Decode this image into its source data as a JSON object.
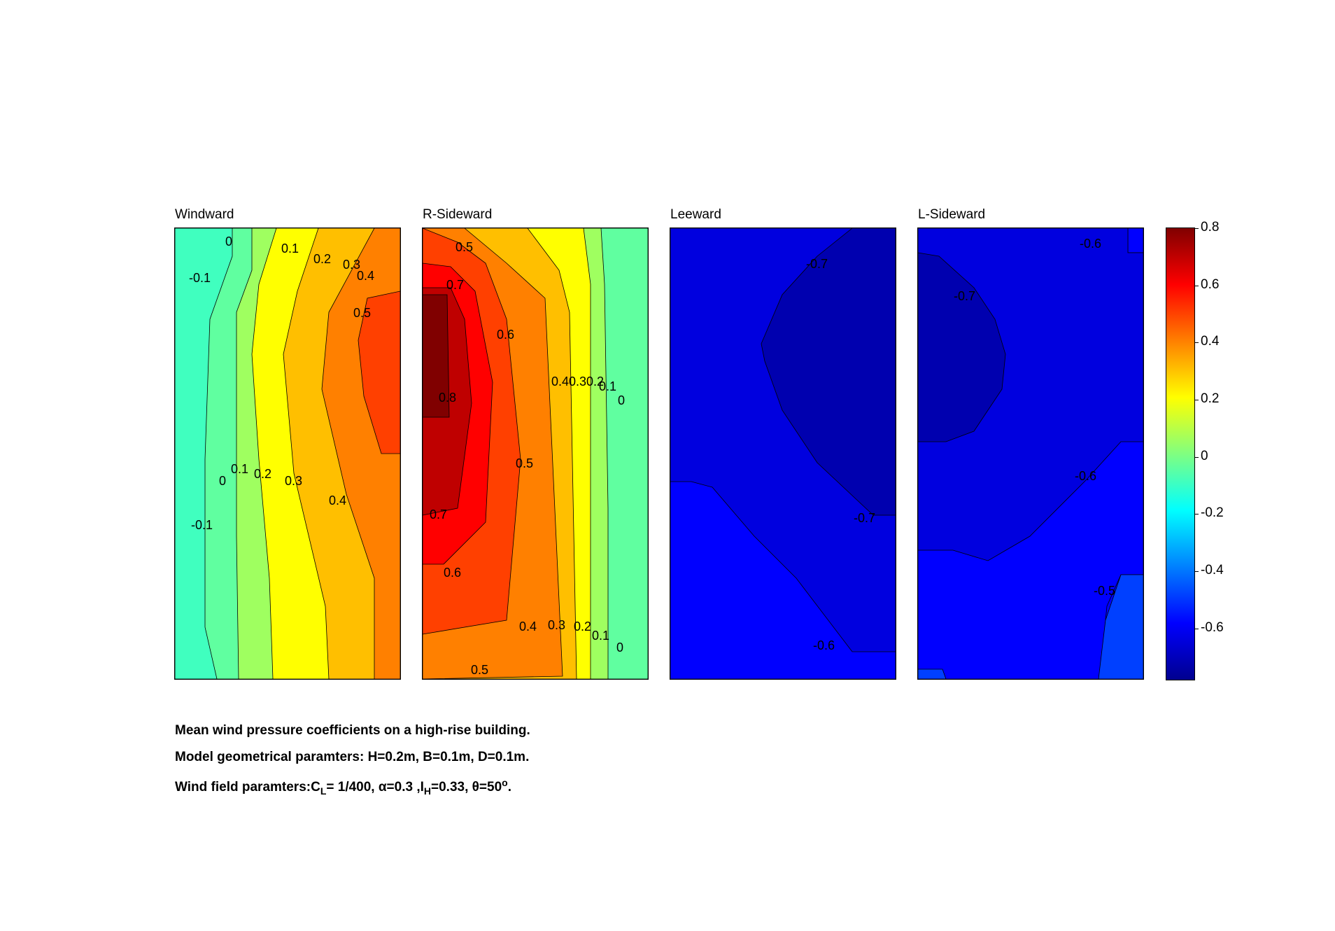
{
  "chart_data": {
    "type": "contour",
    "panels": [
      {
        "title": "Windward",
        "contour_labels": [
          {
            "text": "-0.1",
            "c": -0.1
          },
          {
            "text": "0",
            "c": 0
          },
          {
            "text": "0.1",
            "c": 0.1
          },
          {
            "text": "0.2",
            "c": 0.2
          },
          {
            "text": "0.3",
            "c": 0.3
          },
          {
            "text": "0.4",
            "c": 0.4
          },
          {
            "text": "0.5",
            "c": 0.5
          },
          {
            "text": "0",
            "c": 0
          },
          {
            "text": "0.1",
            "c": 0.1
          },
          {
            "text": "0.2",
            "c": 0.2
          },
          {
            "text": "0.3",
            "c": 0.3
          },
          {
            "text": "0.4",
            "c": 0.4
          },
          {
            "text": "-0.1",
            "c": -0.1
          }
        ]
      },
      {
        "title": "R-Sideward",
        "contour_labels": [
          {
            "text": "0.5",
            "c": 0.5
          },
          {
            "text": "0.7",
            "c": 0.7
          },
          {
            "text": "0.6",
            "c": 0.6
          },
          {
            "text": "0.8",
            "c": 0.8
          },
          {
            "text": "0.40.30.2",
            "c": 0.3
          },
          {
            "text": "0.1",
            "c": 0.1
          },
          {
            "text": "0",
            "c": 0
          },
          {
            "text": "0.5",
            "c": 0.5
          },
          {
            "text": "0.7",
            "c": 0.7
          },
          {
            "text": "0.6",
            "c": 0.6
          },
          {
            "text": "0.4",
            "c": 0.4
          },
          {
            "text": "0.3",
            "c": 0.3
          },
          {
            "text": "0.2",
            "c": 0.2
          },
          {
            "text": "0.1",
            "c": 0.1
          },
          {
            "text": "0",
            "c": 0
          },
          {
            "text": "0.5",
            "c": 0.5
          }
        ]
      },
      {
        "title": "Leeward",
        "contour_labels": [
          {
            "text": "-0.7",
            "c": -0.7
          },
          {
            "text": "-0.7",
            "c": -0.7
          },
          {
            "text": "-0.6",
            "c": -0.6
          }
        ]
      },
      {
        "title": "L-Sideward",
        "contour_labels": [
          {
            "text": "-0.6",
            "c": -0.6
          },
          {
            "text": "-0.7",
            "c": -0.7
          },
          {
            "text": "-0.6",
            "c": -0.6
          },
          {
            "text": "-0.5",
            "c": -0.5
          }
        ]
      }
    ],
    "colorbar": {
      "colormap": "jet",
      "range": [
        -0.78,
        0.8
      ],
      "ticks": [
        0.8,
        0.6,
        0.4,
        0.2,
        0,
        -0.2,
        -0.4,
        -0.6
      ],
      "tick_labels": [
        "0.8",
        "0.6",
        "0.4",
        "0.2",
        "0",
        "-0.2",
        "-0.4",
        "-0.6"
      ]
    }
  },
  "caption": {
    "line1": "Mean wind pressure coefficients on a high-rise building.",
    "line2": "Model geometrical paramters: H=0.2m, B=0.1m, D=0.1m.",
    "line3_prefix": "Wind field paramters:C",
    "line3_cl_sub": "L",
    "line3_mid": "= 1/400, α=0.3 ,I",
    "line3_ih_sub": "H",
    "line3_mid2": "=0.33, θ=50",
    "line3_sup": "o",
    "line3_end": "."
  }
}
